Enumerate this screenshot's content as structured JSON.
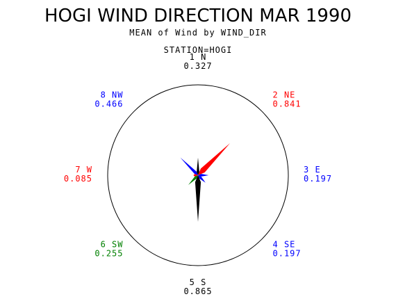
{
  "chart_data": {
    "type": "wind-rose",
    "title": "HOGI WIND DIRECTION MAR 1990",
    "subtitle": "MEAN of Wind by WIND_DIR",
    "station": "STATION=HOGI",
    "rmax": 1.0,
    "directions": [
      {
        "label": "1 N",
        "angle": 0,
        "value": 0.327,
        "value_text": "0.327",
        "color": "#000000"
      },
      {
        "label": "2 NE",
        "angle": 45,
        "value": 0.841,
        "value_text": "0.841",
        "color": "#ff0000"
      },
      {
        "label": "3 E",
        "angle": 90,
        "value": 0.197,
        "value_text": "0.197",
        "color": "#0000ff"
      },
      {
        "label": "4 SE",
        "angle": 135,
        "value": 0.197,
        "value_text": "0.197",
        "color": "#0000ff"
      },
      {
        "label": "5 S",
        "angle": 180,
        "value": 0.865,
        "value_text": "0.865",
        "color": "#000000"
      },
      {
        "label": "6 SW",
        "angle": 225,
        "value": 0.255,
        "value_text": "0.255",
        "color": "#008000"
      },
      {
        "label": "7 W",
        "angle": 270,
        "value": 0.085,
        "value_text": "0.085",
        "color": "#ff0000"
      },
      {
        "label": "8 NW",
        "angle": 315,
        "value": 0.466,
        "value_text": "0.466",
        "color": "#0000ff"
      }
    ]
  }
}
